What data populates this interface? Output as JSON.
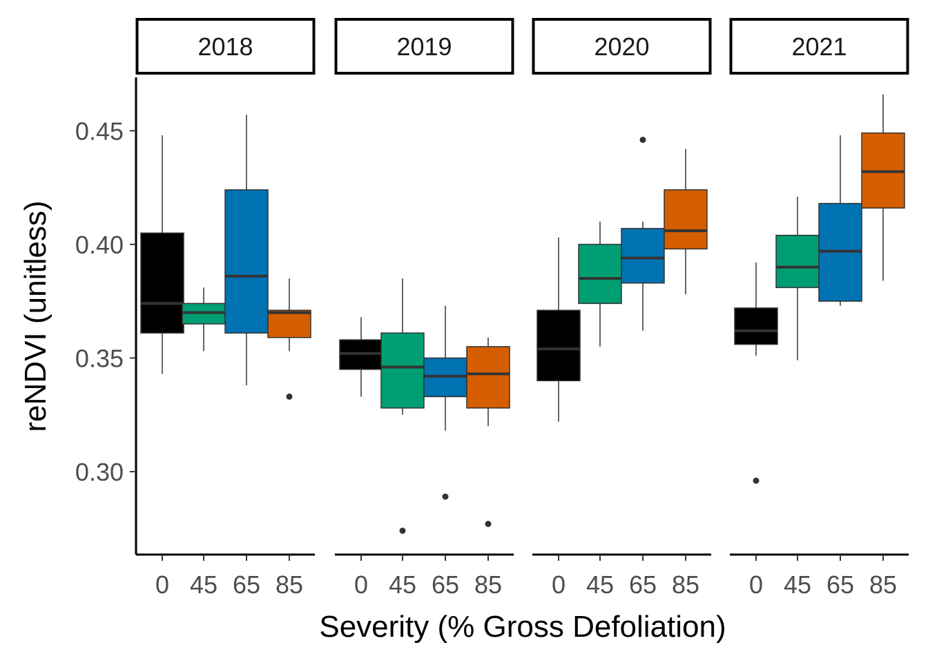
{
  "chart_data": {
    "type": "box",
    "xlabel": "Severity (% Gross Defoliation)",
    "ylabel": "reNDVI (unitless)",
    "ylim": [
      0.2635,
      0.4735
    ],
    "yticks": [
      0.3,
      0.35,
      0.4,
      0.45
    ],
    "ytick_labels": [
      "0.30",
      "0.35",
      "0.40",
      "0.45"
    ],
    "categories": [
      "0",
      "45",
      "65",
      "85"
    ],
    "category_colors": [
      "#000000",
      "#009E73",
      "#0072B2",
      "#D55E00"
    ],
    "panels": [
      {
        "label": "2018",
        "boxes": [
          {
            "category": "0",
            "min": 0.343,
            "q1": 0.361,
            "median": 0.374,
            "q3": 0.405,
            "max": 0.448,
            "outliers": []
          },
          {
            "category": "45",
            "min": 0.353,
            "q1": 0.365,
            "median": 0.37,
            "q3": 0.374,
            "max": 0.381,
            "outliers": []
          },
          {
            "category": "65",
            "min": 0.338,
            "q1": 0.361,
            "median": 0.386,
            "q3": 0.424,
            "max": 0.457,
            "outliers": []
          },
          {
            "category": "85",
            "min": 0.353,
            "q1": 0.359,
            "median": 0.37,
            "q3": 0.371,
            "max": 0.385,
            "outliers": [
              0.333
            ]
          }
        ]
      },
      {
        "label": "2019",
        "boxes": [
          {
            "category": "0",
            "min": 0.333,
            "q1": 0.345,
            "median": 0.352,
            "q3": 0.358,
            "max": 0.368,
            "outliers": []
          },
          {
            "category": "45",
            "min": 0.325,
            "q1": 0.328,
            "median": 0.346,
            "q3": 0.361,
            "max": 0.385,
            "outliers": [
              0.274
            ]
          },
          {
            "category": "65",
            "min": 0.318,
            "q1": 0.333,
            "median": 0.342,
            "q3": 0.35,
            "max": 0.373,
            "outliers": [
              0.289
            ]
          },
          {
            "category": "85",
            "min": 0.32,
            "q1": 0.328,
            "median": 0.343,
            "q3": 0.355,
            "max": 0.359,
            "outliers": [
              0.277
            ]
          }
        ]
      },
      {
        "label": "2020",
        "boxes": [
          {
            "category": "0",
            "min": 0.322,
            "q1": 0.34,
            "median": 0.354,
            "q3": 0.371,
            "max": 0.403,
            "outliers": []
          },
          {
            "category": "45",
            "min": 0.355,
            "q1": 0.374,
            "median": 0.385,
            "q3": 0.4,
            "max": 0.41,
            "outliers": []
          },
          {
            "category": "65",
            "min": 0.362,
            "q1": 0.383,
            "median": 0.394,
            "q3": 0.407,
            "max": 0.41,
            "outliers": [
              0.446
            ]
          },
          {
            "category": "85",
            "min": 0.378,
            "q1": 0.398,
            "median": 0.406,
            "q3": 0.424,
            "max": 0.442,
            "outliers": []
          }
        ]
      },
      {
        "label": "2021",
        "boxes": [
          {
            "category": "0",
            "min": 0.351,
            "q1": 0.356,
            "median": 0.362,
            "q3": 0.372,
            "max": 0.392,
            "outliers": [
              0.296
            ]
          },
          {
            "category": "45",
            "min": 0.349,
            "q1": 0.381,
            "median": 0.39,
            "q3": 0.404,
            "max": 0.421,
            "outliers": []
          },
          {
            "category": "65",
            "min": 0.373,
            "q1": 0.375,
            "median": 0.397,
            "q3": 0.418,
            "max": 0.448,
            "outliers": []
          },
          {
            "category": "85",
            "min": 0.384,
            "q1": 0.416,
            "median": 0.432,
            "q3": 0.449,
            "max": 0.466,
            "outliers": []
          }
        ]
      }
    ]
  }
}
